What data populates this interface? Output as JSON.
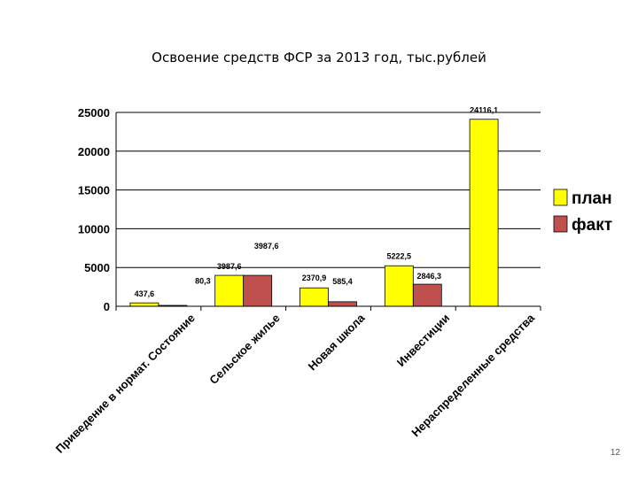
{
  "page": {
    "number": "12"
  },
  "chart_data": {
    "type": "bar",
    "title": "Освоение средств ФСР за 2013 год,  тыс.рублей",
    "xlabel": "",
    "ylabel": "",
    "ylim": [
      0,
      25000
    ],
    "yticks": [
      "0",
      "5000",
      "10000",
      "15000",
      "20000",
      "25000"
    ],
    "grid": true,
    "legend": "right",
    "categories": [
      "Приведение в нормат. Состояние",
      "Сельское жилье",
      "Новая школа",
      "Инвестиции",
      "Нераспределенные средства"
    ],
    "series": [
      {
        "name": "план",
        "color": "#ffff00",
        "values": [
          437.6,
          3987.6,
          2370.9,
          5222.5,
          24116.1
        ],
        "labels": [
          "437,6",
          "3987,6",
          "2370,9",
          "5222,5",
          "24116,1"
        ]
      },
      {
        "name": "факт",
        "color": "#c0504d",
        "values": [
          80.3,
          3987.6,
          585.4,
          2846.3,
          null
        ],
        "labels": [
          "80,3",
          "3987,6",
          "585,4",
          "2846,3",
          ""
        ]
      }
    ]
  }
}
